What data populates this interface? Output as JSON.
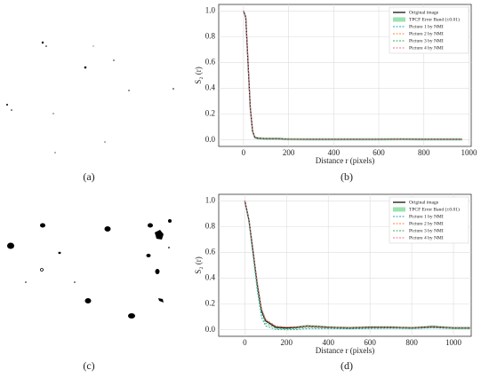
{
  "captions": [
    "(a)",
    "(b)",
    "(c)",
    "(d)"
  ],
  "chart_data": [
    {
      "type": "line",
      "xlabel": "Distance  r (pixels)",
      "ylabel": "S₂ (r)",
      "x": [
        0,
        10,
        20,
        30,
        40,
        50,
        60,
        80,
        100,
        150,
        200,
        300,
        400,
        500,
        600,
        700,
        800,
        900,
        970
      ],
      "xlim": [
        -110,
        1010
      ],
      "xticks": [
        0,
        200,
        400,
        600,
        800,
        1000
      ],
      "ylim": [
        -0.05,
        1.05
      ],
      "yticks": [
        {
          "value": 0,
          "label": "0.0"
        },
        {
          "value": 0.2,
          "label": "0.2"
        },
        {
          "value": 0.4,
          "label": "0.4"
        },
        {
          "value": 0.6,
          "label": "0.6"
        },
        {
          "value": 0.8,
          "label": "0.8"
        },
        {
          "value": 1,
          "label": "1.0"
        }
      ],
      "grid": true,
      "legend": "upper right",
      "band": {
        "name": "TPCF Error Band (±0.01)",
        "color": "#9be3b0",
        "error": 0.01
      },
      "series": [
        {
          "name": "Original image",
          "color": "#111111",
          "dash": false,
          "values": [
            1.0,
            0.95,
            0.6,
            0.25,
            0.07,
            0.02,
            0.015,
            0.012,
            0.01,
            0.01,
            0.006,
            0.005,
            0.005,
            0.005,
            0.005,
            0.006,
            0.005,
            0.005,
            0.005
          ]
        },
        {
          "name": "Picture 1 by NMI",
          "color": "#1f9bb5",
          "dash": true,
          "values": [
            1.0,
            0.94,
            0.58,
            0.24,
            0.06,
            0.015,
            0.01,
            0.008,
            0.006,
            0.006,
            0.004,
            0.003,
            0.003,
            0.003,
            0.004,
            0.004,
            0.003,
            0.003,
            0.003
          ]
        },
        {
          "name": "Picture 2 by NMI",
          "color": "#f08a3c",
          "dash": true,
          "values": [
            1.0,
            0.95,
            0.61,
            0.26,
            0.08,
            0.025,
            0.018,
            0.014,
            0.012,
            0.011,
            0.007,
            0.006,
            0.006,
            0.006,
            0.006,
            0.007,
            0.006,
            0.006,
            0.006
          ]
        },
        {
          "name": "Picture 3 by NMI",
          "color": "#2bb24c",
          "dash": true,
          "values": [
            1.0,
            0.95,
            0.6,
            0.25,
            0.07,
            0.02,
            0.016,
            0.012,
            0.011,
            0.01,
            0.006,
            0.005,
            0.005,
            0.005,
            0.005,
            0.006,
            0.005,
            0.005,
            0.005
          ]
        },
        {
          "name": "Picture 4 by NMI",
          "color": "#f06c8a",
          "dash": true,
          "values": [
            1.0,
            0.95,
            0.6,
            0.25,
            0.07,
            0.022,
            0.016,
            0.013,
            0.011,
            0.01,
            0.006,
            0.005,
            0.005,
            0.005,
            0.005,
            0.006,
            0.005,
            0.005,
            0.005
          ]
        }
      ]
    },
    {
      "type": "line",
      "xlabel": "Distance  r (pixels)",
      "ylabel": "S₂ (r)",
      "x": [
        0,
        20,
        40,
        60,
        80,
        100,
        150,
        200,
        250,
        300,
        400,
        500,
        600,
        700,
        800,
        900,
        1000,
        1080
      ],
      "xlim": [
        -125,
        1085
      ],
      "xticks": [
        0,
        200,
        400,
        600,
        800,
        1000
      ],
      "ylim": [
        -0.05,
        1.05
      ],
      "yticks": [
        {
          "value": 0,
          "label": "0.0"
        },
        {
          "value": 0.2,
          "label": "0.2"
        },
        {
          "value": 0.4,
          "label": "0.4"
        },
        {
          "value": 0.6,
          "label": "0.6"
        },
        {
          "value": 0.8,
          "label": "0.8"
        },
        {
          "value": 1,
          "label": "1.0"
        }
      ],
      "grid": true,
      "legend": "upper right",
      "band": {
        "name": "TPCF Error Band (±0.01)",
        "color": "#9be3b0",
        "error": 0.01
      },
      "series": [
        {
          "name": "Original image",
          "color": "#111111",
          "dash": false,
          "values": [
            1.0,
            0.85,
            0.6,
            0.35,
            0.15,
            0.07,
            0.02,
            0.015,
            0.02,
            0.03,
            0.02,
            0.015,
            0.02,
            0.02,
            0.015,
            0.025,
            0.015,
            0.015
          ]
        },
        {
          "name": "Picture 1 by NMI",
          "color": "#1f9bb5",
          "dash": true,
          "values": [
            1.0,
            0.83,
            0.57,
            0.3,
            0.1,
            0.03,
            0.002,
            0.0,
            0.002,
            0.01,
            0.01,
            0.008,
            0.01,
            0.012,
            0.01,
            0.015,
            0.01,
            0.01
          ]
        },
        {
          "name": "Picture 2 by NMI",
          "color": "#f08a3c",
          "dash": true,
          "values": [
            1.0,
            0.85,
            0.61,
            0.36,
            0.16,
            0.075,
            0.025,
            0.02,
            0.022,
            0.028,
            0.018,
            0.015,
            0.018,
            0.02,
            0.016,
            0.022,
            0.015,
            0.015
          ]
        },
        {
          "name": "Picture 3 by NMI",
          "color": "#2bb24c",
          "dash": true,
          "values": [
            1.0,
            0.84,
            0.59,
            0.33,
            0.13,
            0.05,
            0.012,
            0.008,
            0.012,
            0.02,
            0.015,
            0.012,
            0.015,
            0.016,
            0.012,
            0.018,
            0.012,
            0.012
          ]
        },
        {
          "name": "Picture 4 by NMI",
          "color": "#f06c8a",
          "dash": true,
          "values": [
            1.0,
            0.86,
            0.62,
            0.37,
            0.17,
            0.08,
            0.028,
            0.022,
            0.024,
            0.03,
            0.02,
            0.017,
            0.02,
            0.021,
            0.017,
            0.024,
            0.016,
            0.016
          ]
        }
      ]
    }
  ]
}
